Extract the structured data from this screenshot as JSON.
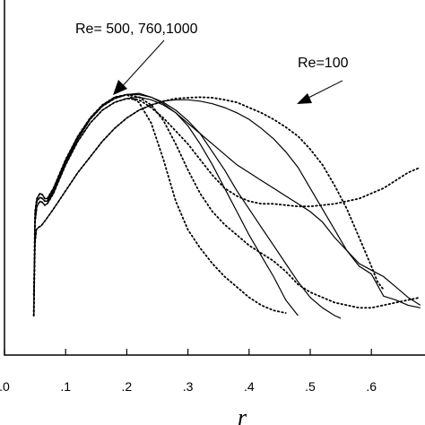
{
  "chart_data": {
    "type": "line",
    "title": "",
    "xlabel": "r",
    "ylabel": "",
    "xlim": [
      0.0,
      0.68
    ],
    "x_ticks": [
      0.0,
      0.1,
      0.2,
      0.3,
      0.4,
      0.5,
      0.6
    ],
    "x_tick_labels": [
      ".0",
      ".1",
      ".2",
      ".3",
      ".4",
      ".5",
      ".6"
    ],
    "ylim": [
      0,
      1
    ],
    "y_ticks_labeled": false,
    "grid": false,
    "legend": "none",
    "annotations": [
      {
        "text": "Re= 500, 760,1000",
        "target": "solid curves, peak near r = 0.2"
      },
      {
        "text": "Re=100",
        "target": "curve peaking near r = 0.33"
      }
    ],
    "series": [
      {
        "style": "solid",
        "x": [
          0.048,
          0.05,
          0.052,
          0.056,
          0.06,
          0.068,
          0.08,
          0.1,
          0.12,
          0.14,
          0.16,
          0.18,
          0.2,
          0.22,
          0.24,
          0.26,
          0.28,
          0.3,
          0.32,
          0.34,
          0.36,
          0.38,
          0.4,
          0.42,
          0.44,
          0.46,
          0.48,
          0.5,
          0.52,
          0.54,
          0.56,
          0.58,
          0.6,
          0.62,
          0.64,
          0.66,
          0.68
        ],
        "y": [
          0.08,
          0.28,
          0.33,
          0.34,
          0.345,
          0.37,
          0.41,
          0.48,
          0.55,
          0.61,
          0.67,
          0.72,
          0.76,
          0.79,
          0.81,
          0.825,
          0.83,
          0.83,
          0.825,
          0.815,
          0.8,
          0.78,
          0.755,
          0.72,
          0.68,
          0.63,
          0.57,
          0.49,
          0.41,
          0.33,
          0.25,
          0.19,
          0.16,
          0.075,
          0.06,
          0.04,
          0.03
        ]
      },
      {
        "style": "dotted",
        "x": [
          0.048,
          0.05,
          0.052,
          0.056,
          0.06,
          0.068,
          0.08,
          0.1,
          0.12,
          0.14,
          0.16,
          0.18,
          0.2,
          0.22,
          0.24,
          0.26,
          0.28,
          0.3,
          0.32,
          0.34,
          0.36,
          0.38,
          0.4,
          0.42,
          0.44,
          0.46,
          0.48,
          0.5,
          0.52,
          0.54,
          0.56,
          0.58,
          0.6,
          0.61,
          0.62
        ],
        "y": [
          0.08,
          0.28,
          0.33,
          0.34,
          0.345,
          0.37,
          0.41,
          0.48,
          0.55,
          0.61,
          0.67,
          0.72,
          0.76,
          0.79,
          0.81,
          0.825,
          0.835,
          0.838,
          0.84,
          0.838,
          0.83,
          0.82,
          0.8,
          0.78,
          0.755,
          0.725,
          0.69,
          0.64,
          0.58,
          0.5,
          0.41,
          0.3,
          0.19,
          0.13,
          0.1
        ]
      },
      {
        "style": "solid",
        "x": [
          0.048,
          0.05,
          0.053,
          0.058,
          0.062,
          0.066,
          0.07,
          0.08,
          0.1,
          0.12,
          0.14,
          0.16,
          0.18,
          0.2,
          0.22,
          0.24,
          0.26,
          0.28,
          0.3,
          0.32,
          0.34,
          0.36,
          0.38,
          0.4,
          0.42,
          0.44,
          0.46,
          0.48
        ],
        "y": [
          0.0,
          0.4,
          0.45,
          0.47,
          0.465,
          0.45,
          0.45,
          0.49,
          0.6,
          0.69,
          0.76,
          0.81,
          0.84,
          0.85,
          0.855,
          0.84,
          0.815,
          0.78,
          0.73,
          0.66,
          0.58,
          0.49,
          0.4,
          0.31,
          0.23,
          0.15,
          0.06,
          0.0
        ]
      },
      {
        "style": "solid",
        "x": [
          0.048,
          0.05,
          0.053,
          0.058,
          0.062,
          0.066,
          0.07,
          0.08,
          0.1,
          0.12,
          0.14,
          0.16,
          0.18,
          0.2,
          0.22,
          0.24,
          0.26,
          0.28,
          0.3,
          0.32,
          0.34,
          0.36,
          0.38,
          0.4,
          0.42,
          0.44,
          0.46,
          0.48,
          0.5,
          0.52,
          0.54,
          0.55
        ],
        "y": [
          0.0,
          0.38,
          0.44,
          0.455,
          0.45,
          0.44,
          0.44,
          0.48,
          0.59,
          0.68,
          0.755,
          0.805,
          0.835,
          0.85,
          0.85,
          0.84,
          0.82,
          0.79,
          0.75,
          0.7,
          0.63,
          0.56,
          0.48,
          0.41,
          0.34,
          0.27,
          0.2,
          0.13,
          0.07,
          0.03,
          0.0,
          -0.01
        ]
      },
      {
        "style": "solid",
        "x": [
          0.048,
          0.05,
          0.053,
          0.058,
          0.062,
          0.066,
          0.07,
          0.08,
          0.1,
          0.12,
          0.14,
          0.16,
          0.18,
          0.2,
          0.22,
          0.24,
          0.26,
          0.28,
          0.3,
          0.32,
          0.34,
          0.36,
          0.38,
          0.4,
          0.42,
          0.44,
          0.46,
          0.48,
          0.5,
          0.52,
          0.54,
          0.56,
          0.58,
          0.6,
          0.62,
          0.64,
          0.66,
          0.68
        ],
        "y": [
          0.0,
          0.36,
          0.42,
          0.44,
          0.435,
          0.425,
          0.43,
          0.47,
          0.58,
          0.67,
          0.74,
          0.79,
          0.82,
          0.835,
          0.84,
          0.83,
          0.81,
          0.78,
          0.74,
          0.7,
          0.66,
          0.62,
          0.58,
          0.55,
          0.52,
          0.49,
          0.46,
          0.43,
          0.4,
          0.36,
          0.3,
          0.25,
          0.2,
          0.175,
          0.15,
          0.11,
          0.07,
          0.04
        ]
      },
      {
        "style": "dotted",
        "x": [
          0.048,
          0.05,
          0.053,
          0.058,
          0.062,
          0.066,
          0.07,
          0.08,
          0.1,
          0.12,
          0.14,
          0.16,
          0.18,
          0.2,
          0.22,
          0.24,
          0.26,
          0.28,
          0.3,
          0.32,
          0.34,
          0.36,
          0.38,
          0.4,
          0.42,
          0.44,
          0.46
        ],
        "y": [
          0.0,
          0.4,
          0.45,
          0.47,
          0.465,
          0.45,
          0.45,
          0.49,
          0.6,
          0.69,
          0.76,
          0.81,
          0.84,
          0.85,
          0.82,
          0.74,
          0.6,
          0.44,
          0.33,
          0.26,
          0.2,
          0.15,
          0.11,
          0.07,
          0.04,
          0.02,
          0.01
        ]
      },
      {
        "style": "dotted",
        "x": [
          0.048,
          0.05,
          0.053,
          0.058,
          0.062,
          0.066,
          0.07,
          0.08,
          0.1,
          0.12,
          0.14,
          0.16,
          0.18,
          0.2,
          0.22,
          0.24,
          0.26,
          0.28,
          0.3,
          0.32,
          0.34,
          0.36,
          0.38,
          0.4,
          0.42,
          0.44,
          0.46,
          0.48,
          0.5,
          0.52,
          0.54,
          0.56,
          0.58,
          0.6,
          0.62,
          0.64,
          0.66,
          0.68
        ],
        "y": [
          0.0,
          0.38,
          0.44,
          0.455,
          0.45,
          0.44,
          0.44,
          0.48,
          0.59,
          0.68,
          0.755,
          0.805,
          0.835,
          0.85,
          0.84,
          0.81,
          0.75,
          0.66,
          0.56,
          0.47,
          0.4,
          0.35,
          0.31,
          0.27,
          0.24,
          0.21,
          0.17,
          0.12,
          0.09,
          0.07,
          0.05,
          0.04,
          0.03,
          0.03,
          0.04,
          0.05,
          0.06,
          0.07
        ]
      },
      {
        "style": "dotted",
        "x": [
          0.048,
          0.05,
          0.053,
          0.058,
          0.062,
          0.066,
          0.07,
          0.08,
          0.1,
          0.12,
          0.14,
          0.16,
          0.18,
          0.2,
          0.22,
          0.24,
          0.26,
          0.28,
          0.3,
          0.32,
          0.34,
          0.36,
          0.38,
          0.4,
          0.42,
          0.44,
          0.46,
          0.48,
          0.5,
          0.52,
          0.54,
          0.56,
          0.58,
          0.6,
          0.62,
          0.64,
          0.66,
          0.68
        ],
        "y": [
          0.0,
          0.36,
          0.42,
          0.44,
          0.435,
          0.425,
          0.43,
          0.47,
          0.58,
          0.67,
          0.74,
          0.79,
          0.82,
          0.835,
          0.83,
          0.8,
          0.76,
          0.71,
          0.66,
          0.6,
          0.54,
          0.49,
          0.46,
          0.44,
          0.43,
          0.43,
          0.425,
          0.42,
          0.42,
          0.425,
          0.43,
          0.44,
          0.45,
          0.47,
          0.49,
          0.52,
          0.55,
          0.57
        ]
      }
    ]
  }
}
